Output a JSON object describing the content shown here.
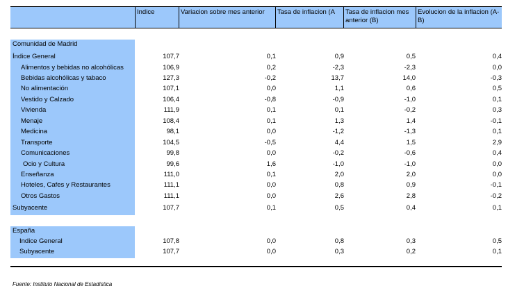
{
  "headers": [
    "Indice",
    "Variacion sobre mes anterior",
    "Tasa de inflacion (A",
    "Tasa de inflacion mes anterior (B)",
    "Evolucion de la inflacion (A-B)"
  ],
  "sections": [
    {
      "title": "Comunidad de Madrid",
      "rows": [
        {
          "label": "Índice General",
          "values": [
            "107,7",
            "0,1",
            "0,9",
            "0,5",
            "0,4"
          ]
        },
        {
          "label": "Alimentos y bebidas no alcohólicas",
          "values": [
            "106,9",
            "0,2",
            "-2,3",
            "-2,3",
            "0,0"
          ]
        },
        {
          "label": "Bebidas alcohólicas y tabaco",
          "values": [
            "127,3",
            "-0,2",
            "13,7",
            "14,0",
            "-0,3"
          ]
        },
        {
          "label": "No alimentación",
          "values": [
            "107,1",
            "0,0",
            "1,1",
            "0,6",
            "0,5"
          ]
        },
        {
          "label": "Vestido y Calzado",
          "values": [
            "106,4",
            "-0,8",
            "-0,9",
            "-1,0",
            "0,1"
          ]
        },
        {
          "label": "Vivienda",
          "values": [
            "111,9",
            "0,1",
            "0,1",
            "-0,2",
            "0,3"
          ]
        },
        {
          "label": "Menaje",
          "values": [
            "108,4",
            "0,1",
            "1,3",
            "1,4",
            "-0,1"
          ]
        },
        {
          "label": "Medicina",
          "values": [
            "98,1",
            "0,0",
            "-1,2",
            "-1,3",
            "0,1"
          ]
        },
        {
          "label": "Transporte",
          "values": [
            "104,5",
            "-0,5",
            "4,4",
            "1,5",
            "2,9"
          ]
        },
        {
          "label": "Comunicaciones",
          "values": [
            "99,8",
            "0,0",
            "-0,2",
            "-0,6",
            "0,4"
          ]
        },
        {
          "label": "Ocio y Cultura",
          "values": [
            "99,6",
            "1,6",
            "-1,0",
            "-1,0",
            "0,0"
          ]
        },
        {
          "label": "Enseñanza",
          "values": [
            "111,0",
            "0,1",
            "2,0",
            "2,0",
            "0,0"
          ]
        },
        {
          "label": "Hoteles, Cafes y Restaurantes",
          "values": [
            "111,1",
            "0,0",
            "0,8",
            "0,9",
            "-0,1"
          ]
        },
        {
          "label": "Otros Gastos",
          "values": [
            "111,1",
            "0,0",
            "2,6",
            "2,8",
            "-0,2"
          ]
        },
        {
          "label": "Subyacente",
          "values": [
            "107,7",
            "0,1",
            "0,5",
            "0,4",
            "0,1"
          ]
        }
      ]
    },
    {
      "title": "España",
      "rows": [
        {
          "label": "Indice General",
          "values": [
            "107,8",
            "0,0",
            "0,8",
            "0,3",
            "0,5"
          ]
        },
        {
          "label": "Subyacente",
          "values": [
            "107,7",
            "0,0",
            "0,3",
            "0,2",
            "0,1"
          ]
        }
      ]
    }
  ],
  "footnote": "Fuente: Instituto Nacional de Estadística"
}
